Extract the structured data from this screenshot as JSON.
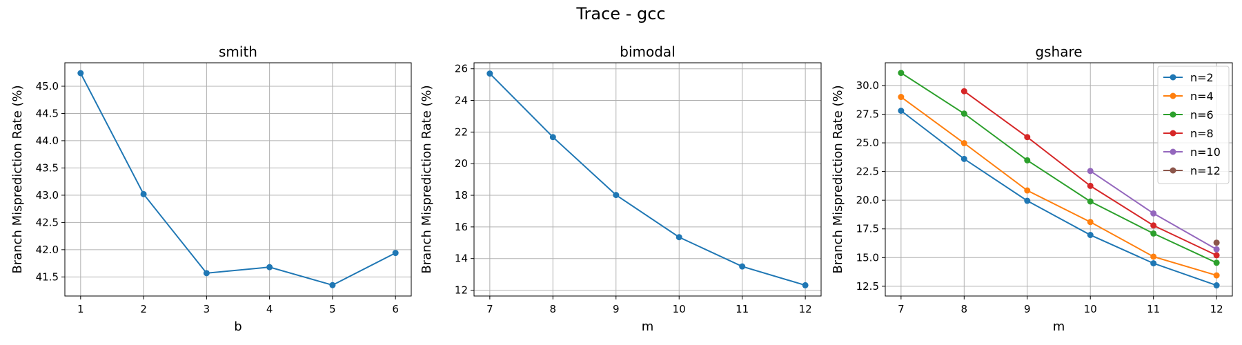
{
  "suptitle": "Trace - gcc",
  "colors": {
    "C0": "#1f77b4",
    "C1": "#ff7f0e",
    "C2": "#2ca02c",
    "C3": "#d62728",
    "C4": "#9467bd",
    "C5": "#8c564b",
    "grid": "#b0b0b0",
    "axes": "#000000"
  },
  "chart_data": [
    {
      "type": "line",
      "title": "smith",
      "xlabel": "b",
      "ylabel": "Branch Misprediction Rate (%)",
      "grid": true,
      "xlim": [
        0.75,
        6.25
      ],
      "ylim": [
        41.15,
        45.43
      ],
      "xticks": [
        1,
        2,
        3,
        4,
        5,
        6
      ],
      "xtick_labels": [
        "1",
        "2",
        "3",
        "4",
        "5",
        "6"
      ],
      "yticks": [
        41.5,
        42.0,
        42.5,
        43.0,
        43.5,
        44.0,
        44.5,
        45.0
      ],
      "ytick_labels": [
        "41.5",
        "42.0",
        "42.5",
        "43.0",
        "43.5",
        "44.0",
        "44.5",
        "45.0"
      ],
      "series": [
        {
          "color": "C0",
          "x": [
            1,
            2,
            3,
            4,
            5,
            6
          ],
          "y": [
            45.24,
            43.02,
            41.57,
            41.68,
            41.35,
            41.94
          ]
        }
      ]
    },
    {
      "type": "line",
      "title": "bimodal",
      "xlabel": "m",
      "ylabel": "Branch Misprediction Rate (%)",
      "grid": true,
      "xlim": [
        6.75,
        12.25
      ],
      "ylim": [
        11.63,
        26.38
      ],
      "xticks": [
        7,
        8,
        9,
        10,
        11,
        12
      ],
      "xtick_labels": [
        "7",
        "8",
        "9",
        "10",
        "11",
        "12"
      ],
      "yticks": [
        12,
        14,
        16,
        18,
        20,
        22,
        24,
        26
      ],
      "ytick_labels": [
        "12",
        "14",
        "16",
        "18",
        "20",
        "22",
        "24",
        "26"
      ],
      "series": [
        {
          "color": "C0",
          "x": [
            7,
            8,
            9,
            10,
            11,
            12
          ],
          "y": [
            25.7,
            21.68,
            18.02,
            15.35,
            13.5,
            12.31
          ]
        }
      ]
    },
    {
      "type": "line",
      "title": "gshare",
      "xlabel": "m",
      "ylabel": "Branch Misprediction Rate (%)",
      "grid": true,
      "legend": "top-right",
      "xlim": [
        6.75,
        12.25
      ],
      "ylim": [
        11.65,
        31.98
      ],
      "xticks": [
        7,
        8,
        9,
        10,
        11,
        12
      ],
      "xtick_labels": [
        "7",
        "8",
        "9",
        "10",
        "11",
        "12"
      ],
      "yticks": [
        12.5,
        15.0,
        17.5,
        20.0,
        22.5,
        25.0,
        27.5,
        30.0
      ],
      "ytick_labels": [
        "12.5",
        "15.0",
        "17.5",
        "20.0",
        "22.5",
        "25.0",
        "27.5",
        "30.0"
      ],
      "series": [
        {
          "name": "n=2",
          "color": "C0",
          "x": [
            7,
            8,
            9,
            10,
            11,
            12
          ],
          "y": [
            27.8,
            23.6,
            19.95,
            16.97,
            14.5,
            12.58
          ]
        },
        {
          "name": "n=4",
          "color": "C1",
          "x": [
            7,
            8,
            9,
            10,
            11,
            12
          ],
          "y": [
            29.0,
            24.97,
            20.85,
            18.1,
            15.08,
            13.45
          ]
        },
        {
          "name": "n=6",
          "color": "C2",
          "x": [
            7,
            8,
            9,
            10,
            11,
            12
          ],
          "y": [
            31.1,
            27.55,
            23.48,
            19.89,
            17.1,
            14.55
          ]
        },
        {
          "name": "n=8",
          "color": "C3",
          "x": [
            8,
            9,
            10,
            11,
            12
          ],
          "y": [
            29.5,
            25.5,
            21.25,
            17.8,
            15.2
          ]
        },
        {
          "name": "n=10",
          "color": "C4",
          "x": [
            10,
            11,
            12
          ],
          "y": [
            22.55,
            18.85,
            15.72
          ]
        },
        {
          "name": "n=12",
          "color": "C5",
          "x": [
            12
          ],
          "y": [
            16.3
          ]
        }
      ]
    }
  ]
}
